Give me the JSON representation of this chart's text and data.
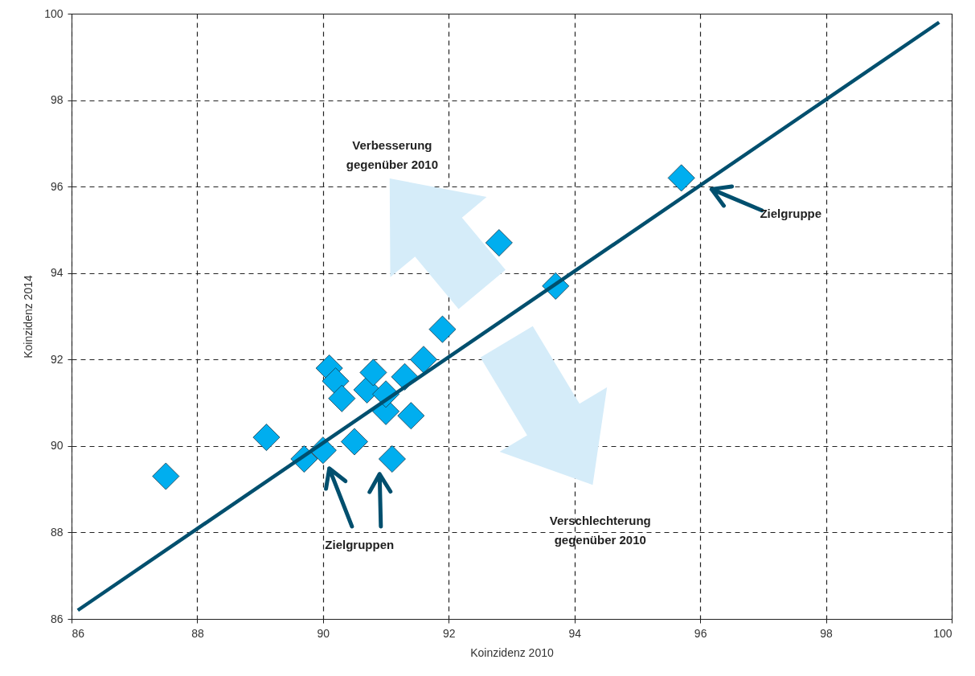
{
  "chart_data": {
    "type": "scatter",
    "xlabel": "Koinzidenz 2010",
    "ylabel": "Koinzidenz 2014",
    "xlim": [
      86,
      100
    ],
    "ylim": [
      86,
      100
    ],
    "xticks": [
      86,
      88,
      90,
      92,
      94,
      96,
      98,
      100
    ],
    "yticks": [
      86,
      88,
      90,
      92,
      94,
      96,
      98,
      100
    ],
    "grid": true,
    "marker": "diamond",
    "series": [
      {
        "color": "#00aeef",
        "x": [
          87.5,
          89.1,
          89.7,
          90.0,
          90.5,
          91.1,
          90.1,
          90.2,
          90.3,
          90.7,
          90.8,
          91.0,
          91.0,
          91.3,
          91.4,
          91.6,
          91.9,
          92.8,
          93.7,
          95.7
        ],
        "values": [
          89.3,
          90.2,
          89.7,
          89.9,
          90.1,
          89.7,
          91.8,
          91.5,
          91.1,
          91.3,
          91.7,
          90.8,
          91.2,
          91.6,
          90.7,
          92.0,
          92.7,
          94.7,
          93.7,
          96.2
        ]
      },
      {
        "type": "line",
        "color": "#004f6e",
        "line_style": "solid",
        "marker": "none",
        "x": [
          86.1,
          99.8
        ],
        "values": [
          86.2,
          99.8
        ]
      }
    ],
    "annotations": [
      "Verbesserung\ngegenüber 2010",
      "Verschlechterung\ngegenüber 2010",
      "Zielgruppe",
      "Zielgruppen"
    ]
  }
}
